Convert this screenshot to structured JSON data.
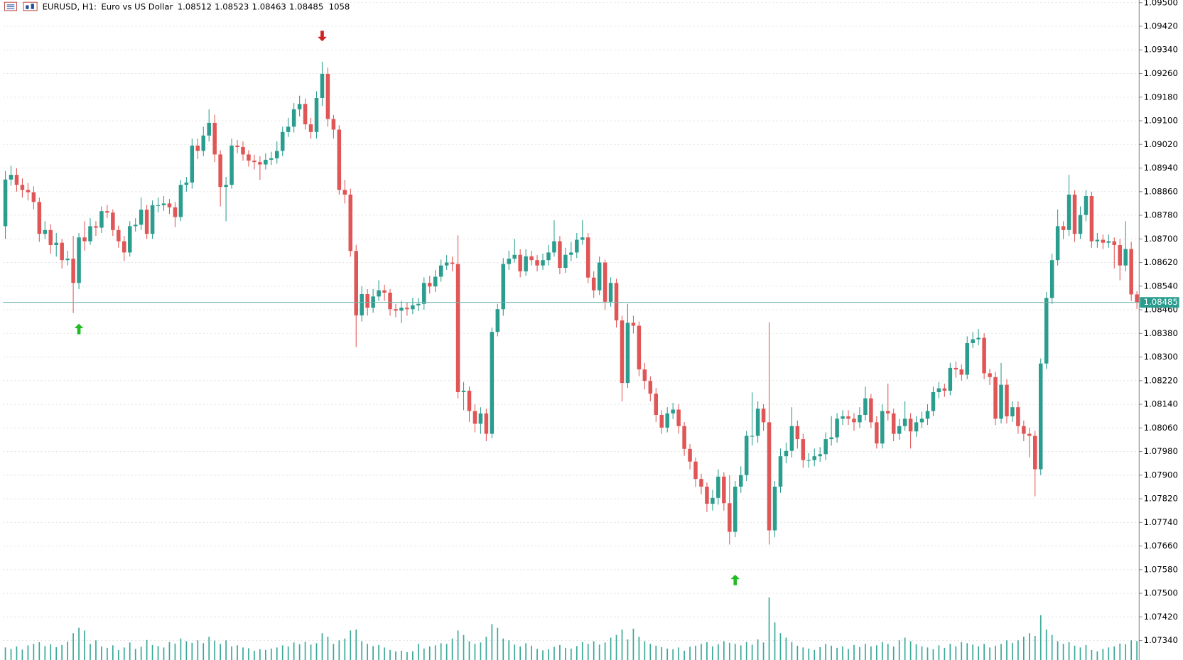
{
  "chart_data": {
    "type": "candlestick",
    "symbol": "EURUSD, H1:",
    "description": "Euro vs US Dollar",
    "bull_color": "#2a9d8f",
    "bear_color": "#e05656",
    "volume_color": "#3aa898",
    "bid_line_color": "#6fb3a9",
    "grid": true,
    "ylim": [
      1.07274,
      1.09509
    ],
    "yticks": [
      {
        "value": 1.095,
        "label": "1.09500"
      },
      {
        "value": 1.0942,
        "label": "1.09420"
      },
      {
        "value": 1.0934,
        "label": "1.09340"
      },
      {
        "value": 1.0926,
        "label": "1.09260"
      },
      {
        "value": 1.0918,
        "label": "1.09180"
      },
      {
        "value": 1.091,
        "label": "1.09100"
      },
      {
        "value": 1.0902,
        "label": "1.09020"
      },
      {
        "value": 1.0894,
        "label": "1.08940"
      },
      {
        "value": 1.0886,
        "label": "1.08860"
      },
      {
        "value": 1.0878,
        "label": "1.08780"
      },
      {
        "value": 1.087,
        "label": "1.08700"
      },
      {
        "value": 1.0862,
        "label": "1.08620"
      },
      {
        "value": 1.0854,
        "label": "1.08540"
      },
      {
        "value": 1.0846,
        "label": "1.08460"
      },
      {
        "value": 1.0838,
        "label": "1.08380"
      },
      {
        "value": 1.083,
        "label": "1.08300"
      },
      {
        "value": 1.0822,
        "label": "1.08220"
      },
      {
        "value": 1.0814,
        "label": "1.08140"
      },
      {
        "value": 1.0806,
        "label": "1.08060"
      },
      {
        "value": 1.0798,
        "label": "1.07980"
      },
      {
        "value": 1.079,
        "label": "1.07900"
      },
      {
        "value": 1.0782,
        "label": "1.07820"
      },
      {
        "value": 1.0774,
        "label": "1.07740"
      },
      {
        "value": 1.0766,
        "label": "1.07660"
      },
      {
        "value": 1.0758,
        "label": "1.07580"
      },
      {
        "value": 1.075,
        "label": "1.07500"
      },
      {
        "value": 1.0742,
        "label": "1.07420"
      },
      {
        "value": 1.0734,
        "label": "1.07340"
      }
    ],
    "open": [
      1.08743,
      1.08901,
      1.08917,
      1.08883,
      1.08866,
      1.08858,
      1.08825,
      1.08717,
      1.0873,
      1.08679,
      1.08687,
      1.08628,
      1.08633,
      1.08551,
      1.08705,
      1.08692,
      1.08743,
      1.08738,
      1.08794,
      1.08789,
      1.0873,
      1.08692,
      1.08654,
      1.08743,
      1.08748,
      1.08799,
      1.08717,
      1.08814,
      1.08814,
      1.0882,
      1.08807,
      1.08774,
      1.08883,
      1.08891,
      1.09016,
      1.08998,
      1.0905,
      1.09093,
      1.08986,
      1.08876,
      1.08883,
      1.09016,
      1.09011,
      1.08986,
      1.08965,
      1.0896,
      1.08952,
      1.08968,
      1.08973,
      1.08998,
      1.09062,
      1.0908,
      1.09139,
      1.09157,
      1.09088,
      1.09062,
      1.09177,
      1.09259,
      1.09106,
      1.0907,
      1.08866,
      1.0885,
      1.08659,
      1.08441,
      1.08513,
      1.08467,
      1.08505,
      1.08526,
      1.08518,
      1.08462,
      1.08457,
      1.08467,
      1.08462,
      1.08475,
      1.0848,
      1.08551,
      1.08539,
      1.08572,
      1.0861,
      1.0862,
      1.08615,
      1.08181,
      1.08186,
      1.08117,
      1.08074,
      1.08109,
      1.0804,
      1.08385,
      1.08462,
      1.08615,
      1.08633,
      1.08646,
      1.0859,
      1.08641,
      1.08628,
      1.0861,
      1.08628,
      1.08654,
      1.08692,
      1.08602,
      1.08646,
      1.08654,
      1.08697,
      1.08705,
      1.08569,
      1.08526,
      1.0862,
      1.08487,
      1.08551,
      1.08424,
      1.08212,
      1.08416,
      1.08406,
      1.08258,
      1.08219,
      1.08176,
      1.08104,
      1.08061,
      1.08109,
      1.08122,
      1.08066,
      1.07989,
      1.07946,
      1.07887,
      1.07861,
      1.07803,
      1.07823,
      1.07895,
      1.07805,
      1.07708,
      1.07861,
      1.079,
      1.08033,
      1.08033,
      1.08125,
      1.08079,
      1.07713,
      1.07861,
      1.07964,
      1.07982,
      1.08066,
      1.08022,
      1.07951,
      1.07951,
      1.07964,
      1.07971,
      1.08022,
      1.08028,
      1.08091,
      1.08099,
      1.08091,
      1.08079,
      1.08104,
      1.0816,
      1.08079,
      1.08007,
      1.08117,
      1.08109,
      1.0804,
      1.08066,
      1.08091,
      1.08048,
      1.08079,
      1.08091,
      1.08117,
      1.08181,
      1.08194,
      1.08186,
      1.08263,
      1.08258,
      1.0824,
      1.08347,
      1.0836,
      1.08365,
      1.08245,
      1.08232,
      1.08091,
      1.08206,
      1.08099,
      1.0813,
      1.08066,
      1.0804,
      1.08033,
      1.0792,
      1.08278,
      1.085,
      1.08628,
      1.08743,
      1.0873,
      1.0885,
      1.08717,
      1.08781,
      1.08845,
      1.08692,
      1.08697,
      1.08687,
      1.08692,
      1.08679,
      1.0861,
      1.08666,
      1.08512
    ],
    "high": [
      1.0893,
      1.08948,
      1.0894,
      1.08905,
      1.0889,
      1.08878,
      1.0884,
      1.0876,
      1.0875,
      1.0872,
      1.087,
      1.0866,
      1.0871,
      1.0872,
      1.0876,
      1.0877,
      1.0876,
      1.0881,
      1.08815,
      1.088,
      1.08745,
      1.0871,
      1.0876,
      1.0877,
      1.0884,
      1.08815,
      1.0883,
      1.0884,
      1.08845,
      1.08835,
      1.08825,
      1.089,
      1.0891,
      1.0904,
      1.0904,
      1.0908,
      1.09139,
      1.0912,
      1.09,
      1.0891,
      1.0904,
      1.09035,
      1.0903,
      1.09,
      1.08985,
      1.0898,
      1.0899,
      1.08995,
      1.0903,
      1.0908,
      1.0911,
      1.0916,
      1.09185,
      1.09175,
      1.0911,
      1.092,
      1.093,
      1.0928,
      1.0912,
      1.09085,
      1.089,
      1.0887,
      1.0868,
      1.0854,
      1.0853,
      1.0853,
      1.0856,
      1.08545,
      1.0853,
      1.0848,
      1.0849,
      1.08485,
      1.085,
      1.085,
      1.0857,
      1.08575,
      1.08595,
      1.0863,
      1.08645,
      1.0864,
      1.08712,
      1.08215,
      1.082,
      1.0814,
      1.0813,
      1.08125,
      1.084,
      1.0848,
      1.08635,
      1.0866,
      1.087,
      1.08665,
      1.08665,
      1.0866,
      1.08645,
      1.0865,
      1.0868,
      1.08763,
      1.0871,
      1.0867,
      1.0869,
      1.0872,
      1.08763,
      1.0872,
      1.0859,
      1.0864,
      1.0863,
      1.0857,
      1.08565,
      1.0844,
      1.0848,
      1.0844,
      1.0842,
      1.0828,
      1.08235,
      1.08195,
      1.0812,
      1.0813,
      1.08145,
      1.0814,
      1.0808,
      1.08005,
      1.0796,
      1.07905,
      1.07875,
      1.0785,
      1.0792,
      1.0791,
      1.079,
      1.0788,
      1.0793,
      1.0805,
      1.0818,
      1.0815,
      1.0814,
      1.08418,
      1.0788,
      1.0799,
      1.0801,
      1.0813,
      1.08085,
      1.0804,
      1.07975,
      1.0799,
      1.07995,
      1.08045,
      1.081,
      1.0811,
      1.0812,
      1.0812,
      1.0811,
      1.0813,
      1.082,
      1.08175,
      1.081,
      1.0814,
      1.0821,
      1.08125,
      1.0809,
      1.0815,
      1.0811,
      1.081,
      1.08115,
      1.0814,
      1.082,
      1.08215,
      1.0821,
      1.0828,
      1.08285,
      1.08275,
      1.0837,
      1.08385,
      1.08395,
      1.0838,
      1.0826,
      1.0825,
      1.0828,
      1.08225,
      1.0815,
      1.0815,
      1.08085,
      1.0806,
      1.0805,
      1.08295,
      1.0852,
      1.0865,
      1.088,
      1.0876,
      1.08917,
      1.08865,
      1.0881,
      1.08865,
      1.0886,
      1.0872,
      1.08715,
      1.08715,
      1.08705,
      1.087,
      1.0876,
      1.0869,
      1.08523
    ],
    "low": [
      1.087,
      1.0888,
      1.0886,
      1.0884,
      1.0883,
      1.088,
      1.0869,
      1.087,
      1.0865,
      1.0864,
      1.086,
      1.0861,
      1.08449,
      1.0853,
      1.0866,
      1.0868,
      1.0871,
      1.0872,
      1.0877,
      1.0871,
      1.0867,
      1.08625,
      1.0864,
      1.08725,
      1.0873,
      1.087,
      1.087,
      1.0879,
      1.08795,
      1.08785,
      1.0874,
      1.0876,
      1.0886,
      1.0887,
      1.0897,
      1.0898,
      1.0903,
      1.0896,
      1.0881,
      1.0876,
      1.0887,
      1.0899,
      1.08965,
      1.08945,
      1.08935,
      1.089,
      1.08935,
      1.0895,
      1.08955,
      1.0898,
      1.09045,
      1.0906,
      1.09115,
      1.0907,
      1.0904,
      1.0904,
      1.0915,
      1.0908,
      1.0904,
      1.0885,
      1.0882,
      1.0864,
      1.08334,
      1.0842,
      1.0844,
      1.0845,
      1.0849,
      1.0849,
      1.0844,
      1.08435,
      1.08415,
      1.0844,
      1.08445,
      1.08455,
      1.0846,
      1.08515,
      1.0852,
      1.08555,
      1.08595,
      1.0859,
      1.0816,
      1.0812,
      1.0808,
      1.08045,
      1.0804,
      1.08015,
      1.08025,
      1.0837,
      1.0844,
      1.08595,
      1.0862,
      1.0857,
      1.08575,
      1.0861,
      1.0859,
      1.08595,
      1.0861,
      1.0864,
      1.0858,
      1.08585,
      1.08625,
      1.08635,
      1.0868,
      1.0855,
      1.085,
      1.0851,
      1.0846,
      1.0847,
      1.084,
      1.0815,
      1.08195,
      1.0838,
      1.08235,
      1.0819,
      1.0815,
      1.0808,
      1.0804,
      1.08045,
      1.0809,
      1.0804,
      1.07965,
      1.0792,
      1.0786,
      1.07835,
      1.07775,
      1.0778,
      1.078,
      1.0778,
      1.07665,
      1.0769,
      1.0784,
      1.0788,
      1.08,
      1.0801,
      1.0805,
      1.07665,
      1.0769,
      1.0784,
      1.0794,
      1.0796,
      1.0799,
      1.07925,
      1.07925,
      1.0793,
      1.07945,
      1.0795,
      1.08,
      1.0801,
      1.0807,
      1.0807,
      1.0805,
      1.0806,
      1.08085,
      1.0806,
      1.0799,
      1.0799,
      1.08085,
      1.08015,
      1.0802,
      1.0805,
      1.0799,
      1.0803,
      1.0806,
      1.0807,
      1.081,
      1.0816,
      1.08165,
      1.0817,
      1.0823,
      1.0822,
      1.08225,
      1.0833,
      1.0834,
      1.08225,
      1.08205,
      1.0807,
      1.08075,
      1.08075,
      1.0808,
      1.0804,
      1.08015,
      1.0796,
      1.07828,
      1.079,
      1.0826,
      1.0848,
      1.0861,
      1.087,
      1.0871,
      1.0869,
      1.087,
      1.0876,
      1.0867,
      1.0867,
      1.08665,
      1.0867,
      1.086,
      1.0856,
      1.0859,
      1.0849,
      1.08463
    ],
    "close": [
      1.08901,
      1.08917,
      1.08883,
      1.08866,
      1.08858,
      1.08825,
      1.08717,
      1.0873,
      1.08679,
      1.08687,
      1.08628,
      1.08633,
      1.08551,
      1.08705,
      1.08692,
      1.08743,
      1.08738,
      1.08794,
      1.08789,
      1.0873,
      1.08692,
      1.08654,
      1.08743,
      1.08748,
      1.08799,
      1.08717,
      1.08814,
      1.08814,
      1.0882,
      1.08807,
      1.08774,
      1.08883,
      1.08891,
      1.09016,
      1.08998,
      1.0905,
      1.09093,
      1.08986,
      1.08876,
      1.08883,
      1.09016,
      1.09011,
      1.08986,
      1.08965,
      1.0896,
      1.08952,
      1.08968,
      1.08973,
      1.08998,
      1.09062,
      1.0908,
      1.09139,
      1.09157,
      1.09088,
      1.09062,
      1.09177,
      1.09259,
      1.09106,
      1.0907,
      1.08866,
      1.0885,
      1.08659,
      1.08441,
      1.08513,
      1.08467,
      1.08505,
      1.08526,
      1.08518,
      1.08462,
      1.08457,
      1.08467,
      1.08462,
      1.08475,
      1.0848,
      1.08551,
      1.08539,
      1.08572,
      1.0861,
      1.0862,
      1.08615,
      1.08181,
      1.08186,
      1.08117,
      1.08074,
      1.08109,
      1.0804,
      1.08385,
      1.08462,
      1.08615,
      1.08633,
      1.08646,
      1.0859,
      1.08641,
      1.08628,
      1.0861,
      1.08628,
      1.08654,
      1.08692,
      1.08602,
      1.08646,
      1.08654,
      1.08697,
      1.08705,
      1.08569,
      1.08526,
      1.0862,
      1.08487,
      1.08551,
      1.08424,
      1.08212,
      1.08416,
      1.08406,
      1.08258,
      1.08219,
      1.08176,
      1.08104,
      1.08061,
      1.08109,
      1.08122,
      1.08066,
      1.07989,
      1.07946,
      1.07887,
      1.07861,
      1.07803,
      1.07823,
      1.07895,
      1.07805,
      1.07708,
      1.07861,
      1.079,
      1.08033,
      1.08033,
      1.08125,
      1.08079,
      1.07713,
      1.07861,
      1.07964,
      1.07982,
      1.08066,
      1.08022,
      1.07951,
      1.07951,
      1.07964,
      1.07971,
      1.08022,
      1.08028,
      1.08091,
      1.08099,
      1.08091,
      1.08079,
      1.08104,
      1.0816,
      1.08079,
      1.08007,
      1.08117,
      1.08109,
      1.0804,
      1.08066,
      1.08091,
      1.08048,
      1.08079,
      1.08091,
      1.08117,
      1.08181,
      1.08194,
      1.08186,
      1.08263,
      1.08258,
      1.0824,
      1.08347,
      1.0836,
      1.08365,
      1.08245,
      1.08232,
      1.08091,
      1.08206,
      1.08099,
      1.0813,
      1.08066,
      1.0804,
      1.08033,
      1.0792,
      1.08278,
      1.085,
      1.08628,
      1.08743,
      1.0873,
      1.0885,
      1.08717,
      1.08781,
      1.08845,
      1.08692,
      1.08697,
      1.08687,
      1.08692,
      1.08679,
      1.0861,
      1.08666,
      1.08512,
      1.08485
    ],
    "volumes": [
      700,
      620,
      760,
      580,
      820,
      900,
      1000,
      780,
      880,
      720,
      840,
      1020,
      1500,
      1800,
      1650,
      900,
      1100,
      760,
      680,
      820,
      560,
      700,
      980,
      620,
      740,
      1120,
      840,
      780,
      700,
      1000,
      920,
      1200,
      1050,
      960,
      1100,
      940,
      1300,
      1080,
      900,
      1100,
      760,
      820,
      700,
      660,
      520,
      600,
      560,
      640,
      700,
      820,
      760,
      980,
      880,
      1020,
      860,
      940,
      1500,
      1300,
      900,
      1100,
      1200,
      1650,
      1700,
      1050,
      900,
      780,
      840,
      700,
      560,
      480,
      520,
      440,
      480,
      900,
      640,
      760,
      820,
      940,
      900,
      1200,
      1650,
      1400,
      1050,
      900,
      980,
      1300,
      2000,
      1800,
      1200,
      1100,
      860,
      760,
      940,
      800,
      620,
      540,
      600,
      740,
      840,
      680,
      640,
      780,
      1000,
      900,
      1050,
      860,
      980,
      1250,
      1400,
      1700,
      1150,
      1750,
      1300,
      1050,
      900,
      800,
      720,
      640,
      600,
      700,
      520,
      740,
      800,
      900,
      1000,
      760,
      880,
      1050,
      960,
      900,
      820,
      1000,
      860,
      1150,
      980,
      3500,
      2100,
      1500,
      1250,
      1000,
      800,
      700,
      640,
      560,
      720,
      900,
      800,
      680,
      760,
      620,
      840,
      720,
      900,
      760,
      820,
      1000,
      900,
      760,
      1100,
      1250,
      1050,
      880,
      760,
      700,
      600,
      820,
      680,
      900,
      760,
      1000,
      940,
      860,
      760,
      900,
      700,
      800,
      900,
      1100,
      960,
      1100,
      1300,
      1500,
      1350,
      2500,
      1700,
      1400,
      1050,
      900,
      1000,
      800,
      700,
      840,
      560,
      480,
      620,
      700,
      760,
      920,
      880,
      1100,
      1058
    ],
    "arrows": [
      {
        "index": 13,
        "price": 1.08395,
        "direction": "up",
        "color": "#22bb22"
      },
      {
        "index": 56,
        "price": 1.09387,
        "direction": "down",
        "color": "#cc2222"
      },
      {
        "index": 129,
        "price": 1.07545,
        "direction": "up",
        "color": "#22bb22"
      }
    ]
  }
}
